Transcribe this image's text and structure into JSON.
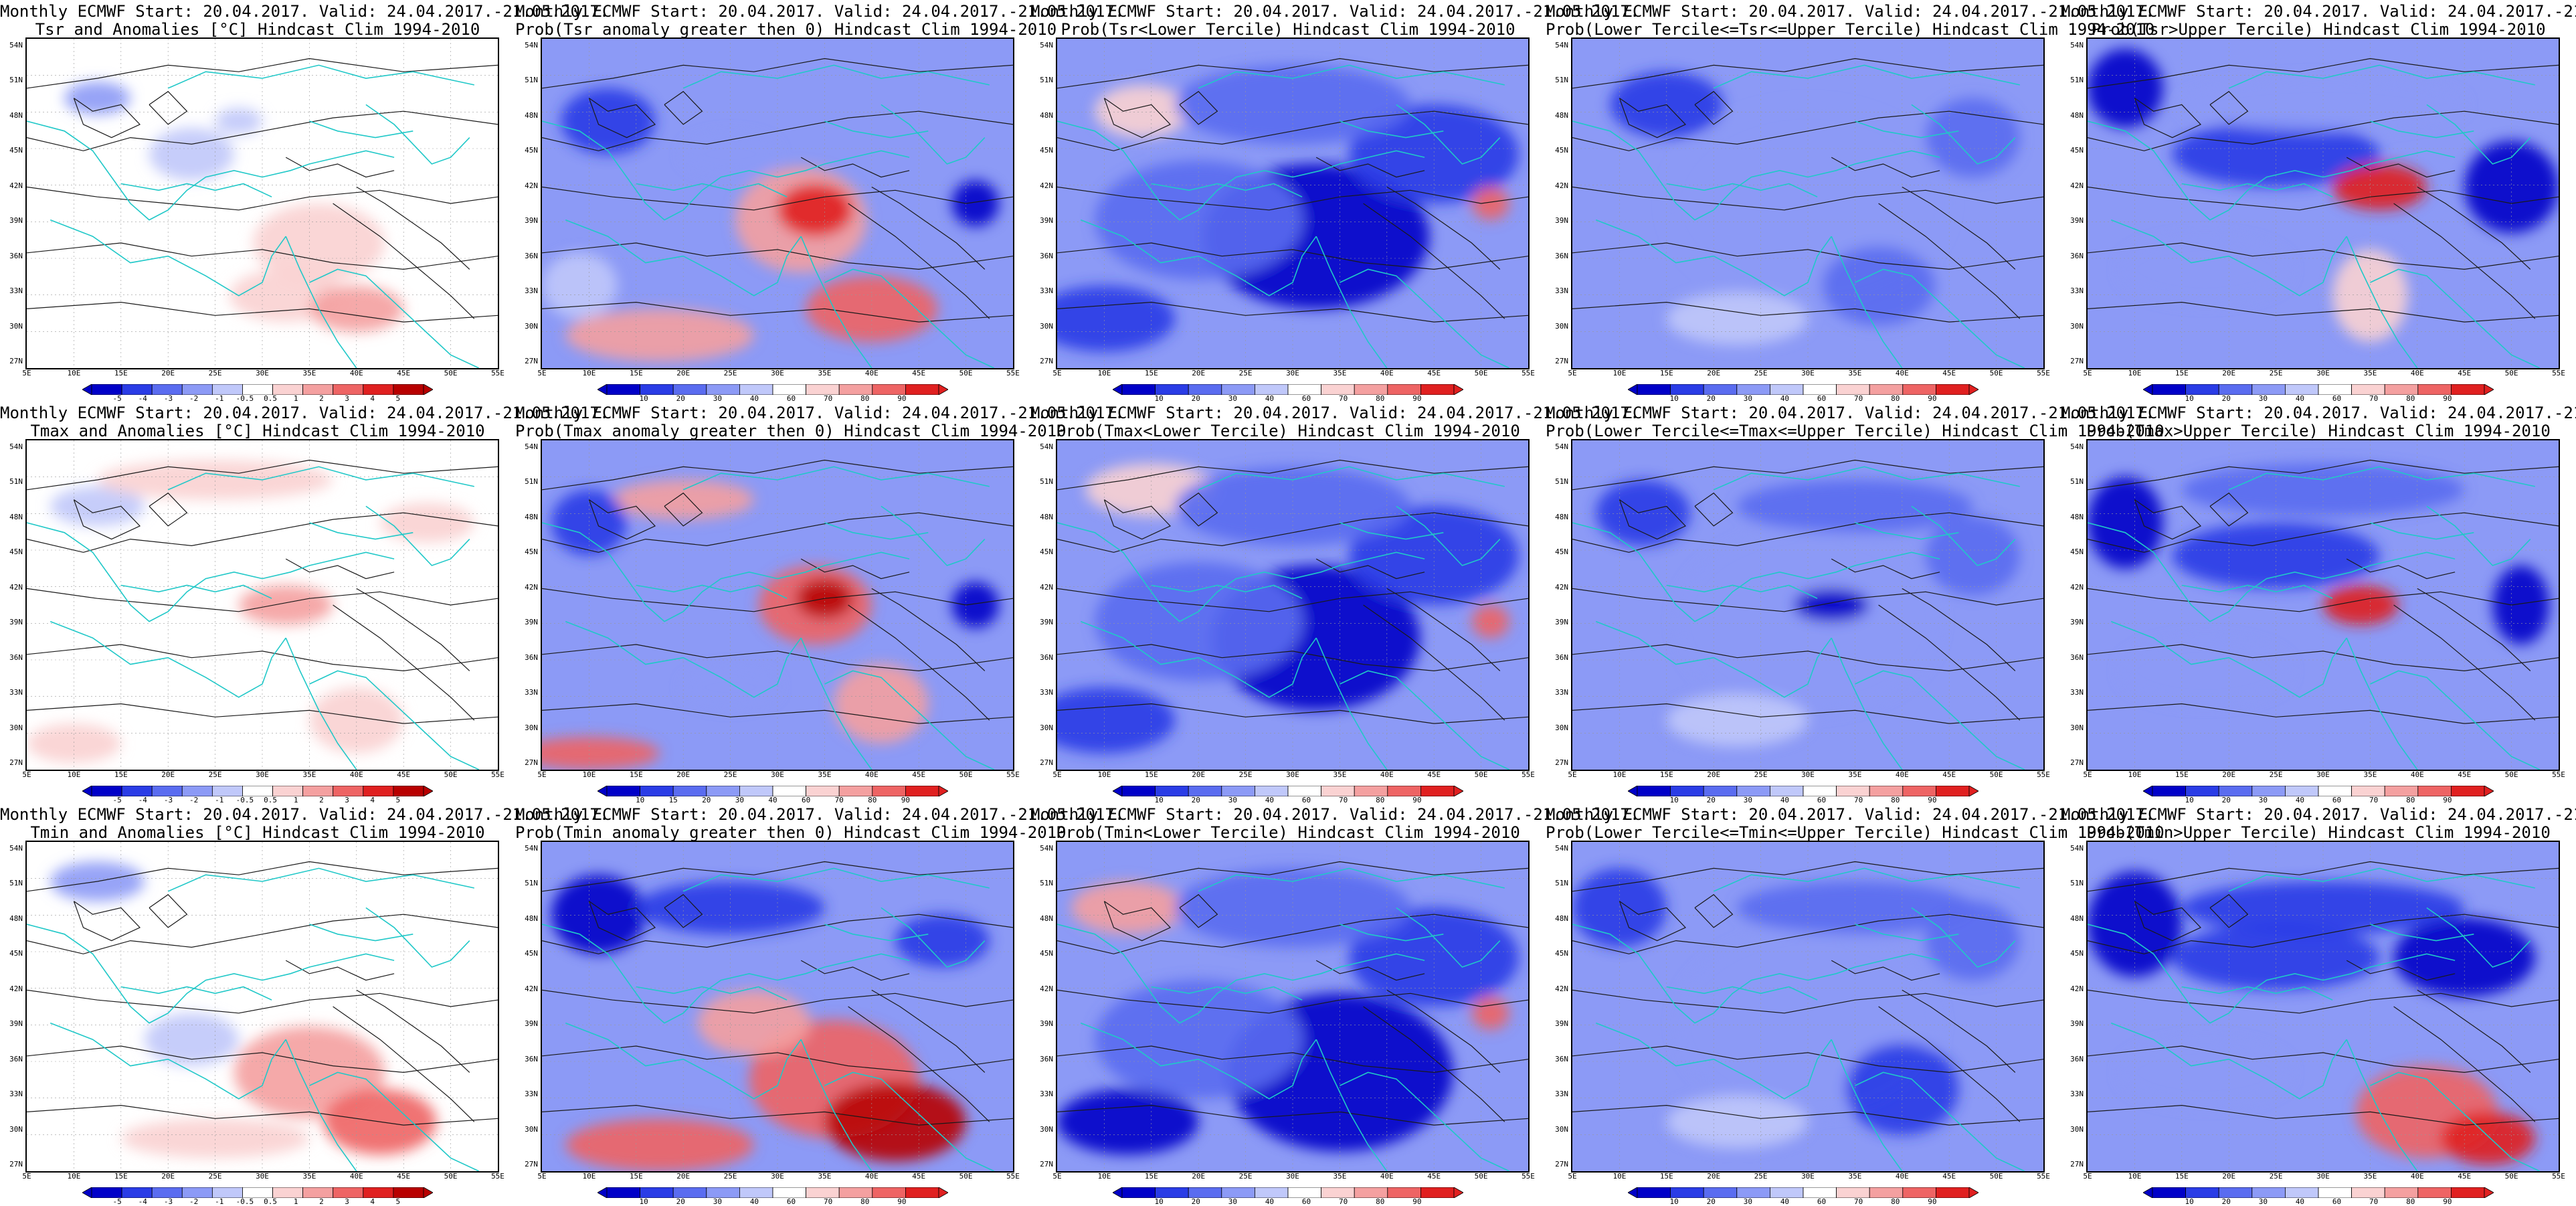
{
  "header": "Monthly ECMWF Start: 20.04.2017. Valid: 24.04.2017.-21.05.2017.",
  "lat_labels": [
    "54N",
    "51N",
    "48N",
    "45N",
    "42N",
    "39N",
    "36N",
    "33N",
    "30N",
    "27N"
  ],
  "lon_labels": [
    "5E",
    "10E",
    "15E",
    "20E",
    "25E",
    "30E",
    "35E",
    "40E",
    "45E",
    "50E",
    "55E"
  ],
  "colors": {
    "coast": "#20c8c8",
    "contour": "#1a1a1a",
    "blue_ramp": [
      "#0000c8",
      "#2a3ce6",
      "#5a6cf0",
      "#8c9af6",
      "#c0c8fa"
    ],
    "red_ramp": [
      "#fad2d2",
      "#f4a0a0",
      "#ee6464",
      "#e02020",
      "#b80000"
    ]
  },
  "panels": [
    {
      "id": "tsr-anom",
      "title2": "Tsr and Anomalies [°C] Hindcast Clim 1994-2010",
      "type": "anomaly",
      "cb_labels": [
        "-5",
        "-4",
        "-3",
        "-2",
        "-1",
        "-0.5",
        "0.5",
        "1",
        "2",
        "3",
        "4",
        "5"
      ]
    },
    {
      "id": "tsr-pgt0",
      "title2": "Prob(Tsr anomaly greater then 0) Hindcast Clim 1994-2010",
      "type": "prob",
      "cb_labels": [
        "10",
        "20",
        "30",
        "40",
        "60",
        "70",
        "80",
        "90"
      ]
    },
    {
      "id": "tsr-lower",
      "title2": "Prob(Tsr<Lower Tercile) Hindcast Clim 1994-2010",
      "type": "prob",
      "cb_labels": [
        "10",
        "20",
        "30",
        "40",
        "60",
        "70",
        "80",
        "90"
      ]
    },
    {
      "id": "tsr-middle",
      "title2": "Prob(Lower Tercile<=Tsr<=Upper Tercile) Hindcast Clim 1994-2010",
      "type": "prob",
      "cb_labels": [
        "10",
        "20",
        "30",
        "40",
        "60",
        "70",
        "80",
        "90"
      ]
    },
    {
      "id": "tsr-upper",
      "title2": "Prob(Tsr>Upper Tercile) Hindcast Clim 1994-2010",
      "type": "prob",
      "cb_labels": [
        "10",
        "20",
        "30",
        "40",
        "60",
        "70",
        "80",
        "90"
      ]
    },
    {
      "id": "tmax-anom",
      "title2": "Tmax and Anomalies [°C] Hindcast Clim 1994-2010",
      "type": "anomaly",
      "cb_labels": [
        "-5",
        "-4",
        "-3",
        "-2",
        "-1",
        "-0.5",
        "0.5",
        "1",
        "2",
        "3",
        "4",
        "5"
      ]
    },
    {
      "id": "tmax-pgt0",
      "title2": "Prob(Tmax anomaly greater then 0) Hindcast Clim 1994-2010",
      "type": "prob",
      "cb_labels": [
        "10",
        "15",
        "20",
        "30",
        "40",
        "60",
        "70",
        "80",
        "90"
      ]
    },
    {
      "id": "tmax-lower",
      "title2": "Prob(Tmax<Lower Tercile) Hindcast Clim 1994-2010",
      "type": "prob",
      "cb_labels": [
        "10",
        "20",
        "30",
        "40",
        "60",
        "70",
        "80",
        "90"
      ]
    },
    {
      "id": "tmax-middle",
      "title2": "Prob(Lower Tercile<=Tmax<=Upper Tercile) Hindcast Clim 1994-2010",
      "type": "prob",
      "cb_labels": [
        "10",
        "20",
        "30",
        "40",
        "60",
        "70",
        "80",
        "90"
      ]
    },
    {
      "id": "tmax-upper",
      "title2": "Prob(Tmax>Upper Tercile) Hindcast Clim 1994-2010",
      "type": "prob",
      "cb_labels": [
        "10",
        "20",
        "30",
        "40",
        "60",
        "70",
        "80",
        "90"
      ]
    },
    {
      "id": "tmin-anom",
      "title2": "Tmin and Anomalies [°C] Hindcast Clim 1994-2010",
      "type": "anomaly",
      "cb_labels": [
        "-5",
        "-4",
        "-3",
        "-2",
        "-1",
        "-0.5",
        "0.5",
        "1",
        "2",
        "3",
        "4",
        "5"
      ]
    },
    {
      "id": "tmin-pgt0",
      "title2": "Prob(Tmin anomaly greater then 0) Hindcast Clim 1994-2010",
      "type": "prob",
      "cb_labels": [
        "10",
        "20",
        "30",
        "40",
        "60",
        "70",
        "80",
        "90"
      ]
    },
    {
      "id": "tmin-lower",
      "title2": "Prob(Tmin<Lower Tercile) Hindcast Clim 1994-2010",
      "type": "prob",
      "cb_labels": [
        "10",
        "20",
        "30",
        "40",
        "60",
        "70",
        "80",
        "90"
      ]
    },
    {
      "id": "tmin-middle",
      "title2": "Prob(Lower Tercile<=Tmin<=Upper Tercile) Hindcast Clim 1994-2010",
      "type": "prob",
      "cb_labels": [
        "10",
        "20",
        "30",
        "40",
        "60",
        "70",
        "80",
        "90"
      ]
    },
    {
      "id": "tmin-upper",
      "title2": "Prob(Tmin>Upper Tercile) Hindcast Clim 1994-2010",
      "type": "prob",
      "cb_labels": [
        "10",
        "20",
        "30",
        "40",
        "60",
        "70",
        "80",
        "90"
      ]
    }
  ]
}
